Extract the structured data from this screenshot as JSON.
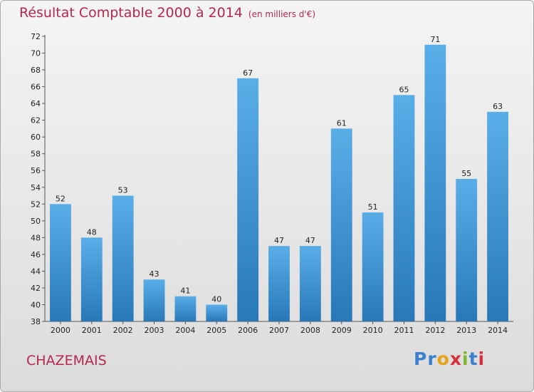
{
  "header": {
    "title": "Résultat Comptable 2000 à 2014",
    "subtitle": "(en milliers d'€)"
  },
  "footer": {
    "commune": "CHAZEMAIS",
    "logo_letters": [
      "P",
      "r",
      "o",
      "x",
      "i",
      "t",
      "i"
    ]
  },
  "colors": {
    "title": "#b5274f",
    "bar_light": "#5aaee8",
    "bar_dark": "#2878b8",
    "logo": [
      "#3b7fcf",
      "#3b7fcf",
      "#e8a21a",
      "#d6303c",
      "#7ab829",
      "#3b7fcf",
      "#d6303c"
    ]
  },
  "chart_data": {
    "type": "bar",
    "title": "Résultat Comptable 2000 à 2014",
    "subtitle": "(en milliers d'€)",
    "categories": [
      "2000",
      "2001",
      "2002",
      "2003",
      "2004",
      "2005",
      "2006",
      "2007",
      "2008",
      "2009",
      "2010",
      "2011",
      "2012",
      "2013",
      "2014"
    ],
    "values": [
      52,
      48,
      53,
      43,
      41,
      40,
      67,
      47,
      47,
      61,
      51,
      65,
      71,
      55,
      63
    ],
    "xlabel": "",
    "ylabel": "",
    "ylim": [
      38,
      72
    ],
    "yticks": [
      38,
      40,
      42,
      44,
      46,
      48,
      50,
      52,
      54,
      56,
      58,
      60,
      62,
      64,
      66,
      68,
      70,
      72
    ],
    "grid": false,
    "data_labels": true
  }
}
